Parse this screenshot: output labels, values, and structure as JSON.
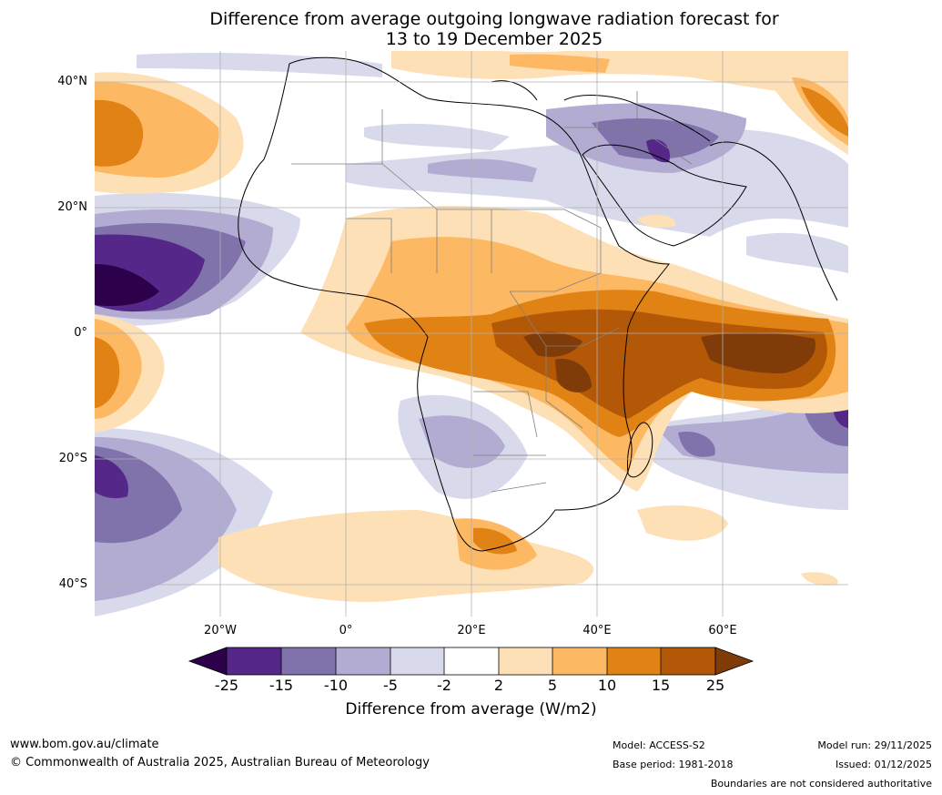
{
  "title": {
    "line1": "Difference from average outgoing longwave radiation forecast for",
    "line2": "13 to 19 December 2025"
  },
  "axes": {
    "lat_labels": [
      "40°N",
      "20°N",
      "0°",
      "20°S",
      "40°S"
    ],
    "lon_labels": [
      "20°W",
      "0°",
      "20°E",
      "40°E",
      "60°E"
    ],
    "lat_values": [
      40,
      20,
      0,
      -20,
      -40
    ],
    "lon_values": [
      -20,
      0,
      20,
      40,
      60
    ]
  },
  "colorbar": {
    "ticks": [
      "-25",
      "-15",
      "-10",
      "-5",
      "-2",
      "2",
      "5",
      "10",
      "15",
      "25"
    ],
    "colors": [
      "#2d004b",
      "#542788",
      "#8073ac",
      "#b2abd2",
      "#d8daeb",
      "#ffffff",
      "#fee0b6",
      "#fdb863",
      "#e08214",
      "#b35806",
      "#7f3b08"
    ],
    "title": "Difference from average (W/m2)"
  },
  "footer": {
    "url": "www.bom.gov.au/climate",
    "copyright": "© Commonwealth of Australia 2025, Australian Bureau of Meteorology",
    "model": "Model: ACCESS-S2",
    "base_period": "Base period: 1981-2018",
    "model_run": "Model run: 29/11/2025",
    "issued": "Issued: 01/12/2025",
    "disclaimer": "Boundaries are not considered authoritative"
  }
}
